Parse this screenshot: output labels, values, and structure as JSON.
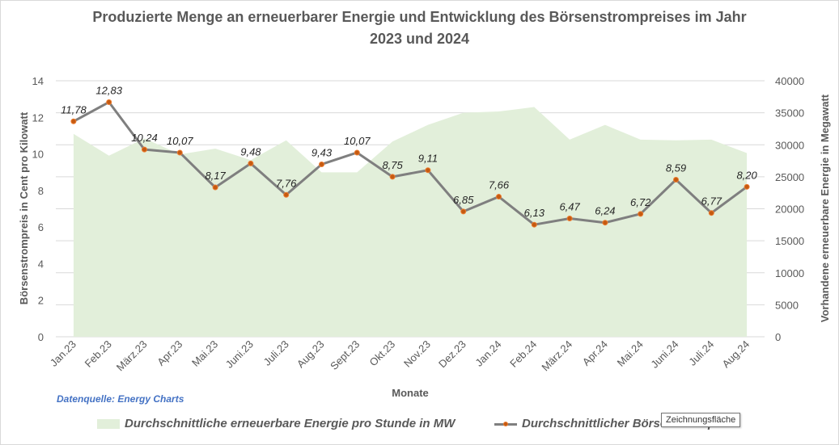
{
  "chart_data": {
    "type": "area+line",
    "title_lines": [
      "Produzierte Menge an erneuerbarer Energie und Entwicklung des Börsenstrompreises im Jahr",
      "2023 und 2024"
    ],
    "xlabel": "Monate",
    "ylabel_left": "Börsenstrompreis in Cent pro Kilowatt",
    "ylabel_right": "Vorhandene erneuerbare Energie in Megawatt",
    "categories": [
      "Jan.23",
      "Feb.23",
      "März.23",
      "Apr.23",
      "Mai.23",
      "Juni.23",
      "Juli.23",
      "Aug.23",
      "Sept.23",
      "Okt.23",
      "Nov.23",
      "Dez.23",
      "Jan.24",
      "Feb.24",
      "März.24",
      "Apr.24",
      "Mai.24",
      "Juni.24",
      "Juli.24",
      "Aug.24"
    ],
    "y_left": {
      "min": 0,
      "max": 14,
      "ticks": [
        "0",
        "2",
        "4",
        "6",
        "8",
        "10",
        "12",
        "14"
      ]
    },
    "y_right": {
      "min": 0,
      "max": 40000,
      "ticks": [
        "0",
        "5000",
        "10000",
        "15000",
        "20000",
        "25000",
        "30000",
        "35000",
        "40000"
      ]
    },
    "series": [
      {
        "name": "Durchschnittliche erneuerbare Energie pro Stunde in MW",
        "type": "area",
        "axis": "right",
        "color": "#e2efda",
        "values": [
          31700,
          28300,
          31000,
          28500,
          29400,
          27600,
          30700,
          25700,
          25700,
          30500,
          33100,
          35000,
          35200,
          35900,
          30800,
          33100,
          30800,
          30700,
          30800,
          28700
        ]
      },
      {
        "name": "Durchschnittlicher Börsenstrompreis",
        "type": "line",
        "axis": "left",
        "color": "#7f7f7f",
        "marker_color": "#c55a11",
        "values": [
          11.78,
          12.83,
          10.24,
          10.07,
          8.17,
          9.48,
          7.76,
          9.43,
          10.07,
          8.75,
          9.11,
          6.85,
          7.66,
          6.13,
          6.47,
          6.24,
          6.72,
          8.59,
          6.77,
          8.2
        ],
        "data_labels": [
          "11,78",
          "12,83",
          "10,24",
          "10,07",
          "8,17",
          "9,48",
          "7,76",
          "9,43",
          "10,07",
          "8,75",
          "9,11",
          "6,85",
          "7,66",
          "6,13",
          "6,47",
          "6,24",
          "6,72",
          "8,59",
          "6,77",
          "8,20"
        ]
      }
    ],
    "grid": true,
    "legend_position": "bottom"
  },
  "source_note": "Datenquelle: Energy Charts",
  "tooltip": "Zeichnungsfläche",
  "legend": {
    "area_label": "Durchschnittliche erneuerbare Energie pro Stunde in MW",
    "line_label": "Durchschnittlicher Börsenstrompreis"
  }
}
